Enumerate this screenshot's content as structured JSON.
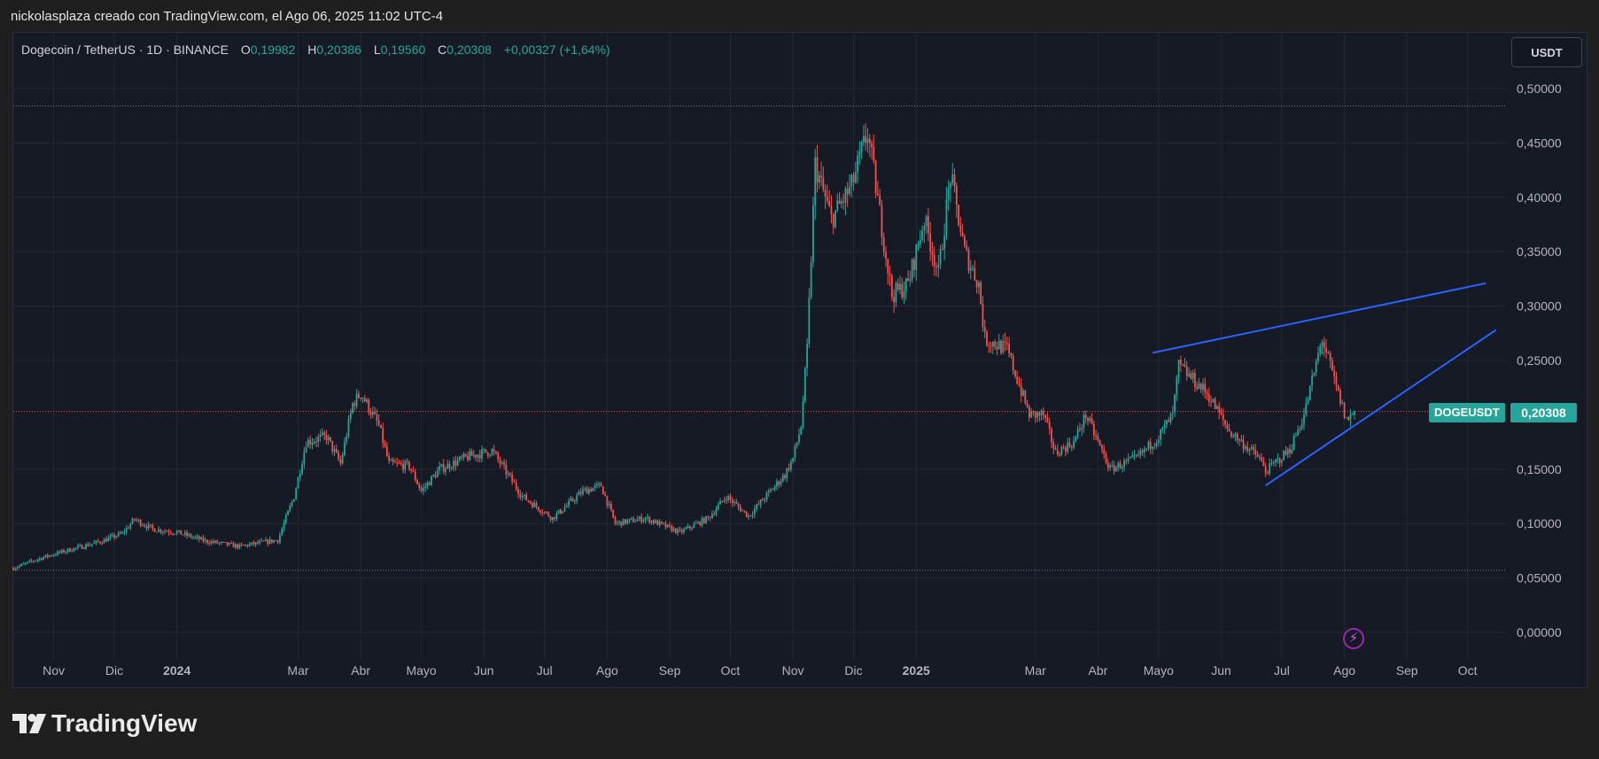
{
  "caption": "nickolasplaza creado con TradingView.com, el Ago 06, 2025 11:02 UTC-4",
  "legend": {
    "symbol": "Dogecoin / TetherUS · 1D · BINANCE",
    "o_label": "O",
    "o_value": "0,19982",
    "h_label": "H",
    "h_value": "0,20386",
    "l_label": "L",
    "l_value": "0,19560",
    "c_label": "C",
    "c_value": "0,20308",
    "change": "+0,00327 (+1,64%)"
  },
  "currency_button": "USDT",
  "symbol_tag": "DOGEUSDT",
  "last_price_label": "0,20308",
  "brand": "TradingView",
  "colors": {
    "up": "#26a69a",
    "down": "#ef5350",
    "trendline": "#2962ff",
    "background": "#161a25",
    "grid": "#242833"
  },
  "icons": [
    "tradingview-logo-icon",
    "flash-icon"
  ],
  "chart_data": {
    "type": "candlestick",
    "interval": "1D",
    "x_range": [
      "2023-10-12",
      "2025-10-20"
    ],
    "ylim": [
      -0.02,
      0.52
    ],
    "y_ticks": [
      {
        "value": 0.5,
        "label": "0,50000"
      },
      {
        "value": 0.45,
        "label": "0,45000"
      },
      {
        "value": 0.4,
        "label": "0,40000"
      },
      {
        "value": 0.35,
        "label": "0,35000"
      },
      {
        "value": 0.3,
        "label": "0,30000"
      },
      {
        "value": 0.25,
        "label": "0,25000"
      },
      {
        "value": 0.15,
        "label": "0,15000"
      },
      {
        "value": 0.1,
        "label": "0,10000"
      },
      {
        "value": 0.05,
        "label": "0,05000"
      },
      {
        "value": 0.0,
        "label": "0,00000"
      }
    ],
    "x_ticks": [
      {
        "date": "2023-11-01",
        "label": "Nov",
        "bold": false
      },
      {
        "date": "2023-12-01",
        "label": "Dic",
        "bold": false
      },
      {
        "date": "2024-01-01",
        "label": "2024",
        "bold": true
      },
      {
        "date": "2024-03-01",
        "label": "Mar",
        "bold": false
      },
      {
        "date": "2024-04-01",
        "label": "Abr",
        "bold": false
      },
      {
        "date": "2024-05-01",
        "label": "Mayo",
        "bold": false
      },
      {
        "date": "2024-06-01",
        "label": "Jun",
        "bold": false
      },
      {
        "date": "2024-07-01",
        "label": "Jul",
        "bold": false
      },
      {
        "date": "2024-08-01",
        "label": "Ago",
        "bold": false
      },
      {
        "date": "2024-09-01",
        "label": "Sep",
        "bold": false
      },
      {
        "date": "2024-10-01",
        "label": "Oct",
        "bold": false
      },
      {
        "date": "2024-11-01",
        "label": "Nov",
        "bold": false
      },
      {
        "date": "2024-12-01",
        "label": "Dic",
        "bold": false
      },
      {
        "date": "2025-01-01",
        "label": "2025",
        "bold": true
      },
      {
        "date": "2025-03-01",
        "label": "Mar",
        "bold": false
      },
      {
        "date": "2025-04-01",
        "label": "Abr",
        "bold": false
      },
      {
        "date": "2025-05-01",
        "label": "Mayo",
        "bold": false
      },
      {
        "date": "2025-06-01",
        "label": "Jun",
        "bold": false
      },
      {
        "date": "2025-07-01",
        "label": "Jul",
        "bold": false
      },
      {
        "date": "2025-08-01",
        "label": "Ago",
        "bold": false
      },
      {
        "date": "2025-09-01",
        "label": "Sep",
        "bold": false
      },
      {
        "date": "2025-10-01",
        "label": "Oct",
        "bold": false
      }
    ],
    "close_path": [
      {
        "date": "2023-10-12",
        "close": 0.059
      },
      {
        "date": "2023-10-25",
        "close": 0.068
      },
      {
        "date": "2023-11-05",
        "close": 0.074
      },
      {
        "date": "2023-11-15",
        "close": 0.079
      },
      {
        "date": "2023-11-25",
        "close": 0.084
      },
      {
        "date": "2023-12-05",
        "close": 0.091
      },
      {
        "date": "2023-12-11",
        "close": 0.104
      },
      {
        "date": "2023-12-20",
        "close": 0.095
      },
      {
        "date": "2024-01-01",
        "close": 0.092
      },
      {
        "date": "2024-01-15",
        "close": 0.084
      },
      {
        "date": "2024-02-01",
        "close": 0.079
      },
      {
        "date": "2024-02-20",
        "close": 0.085
      },
      {
        "date": "2024-02-28",
        "close": 0.125
      },
      {
        "date": "2024-03-05",
        "close": 0.175
      },
      {
        "date": "2024-03-15",
        "close": 0.18
      },
      {
        "date": "2024-03-22",
        "close": 0.155
      },
      {
        "date": "2024-03-28",
        "close": 0.21
      },
      {
        "date": "2024-04-01",
        "close": 0.22
      },
      {
        "date": "2024-04-10",
        "close": 0.19
      },
      {
        "date": "2024-04-15",
        "close": 0.155
      },
      {
        "date": "2024-04-25",
        "close": 0.153
      },
      {
        "date": "2024-05-01",
        "close": 0.13
      },
      {
        "date": "2024-05-10",
        "close": 0.15
      },
      {
        "date": "2024-05-25",
        "close": 0.162
      },
      {
        "date": "2024-06-05",
        "close": 0.167
      },
      {
        "date": "2024-06-20",
        "close": 0.125
      },
      {
        "date": "2024-07-05",
        "close": 0.105
      },
      {
        "date": "2024-07-20",
        "close": 0.13
      },
      {
        "date": "2024-07-29",
        "close": 0.135
      },
      {
        "date": "2024-08-05",
        "close": 0.1
      },
      {
        "date": "2024-08-20",
        "close": 0.105
      },
      {
        "date": "2024-09-06",
        "close": 0.092
      },
      {
        "date": "2024-09-20",
        "close": 0.105
      },
      {
        "date": "2024-09-29",
        "close": 0.125
      },
      {
        "date": "2024-10-10",
        "close": 0.107
      },
      {
        "date": "2024-10-28",
        "close": 0.145
      },
      {
        "date": "2024-11-01",
        "close": 0.16
      },
      {
        "date": "2024-11-05",
        "close": 0.19
      },
      {
        "date": "2024-11-08",
        "close": 0.26
      },
      {
        "date": "2024-11-12",
        "close": 0.43
      },
      {
        "date": "2024-11-20",
        "close": 0.38
      },
      {
        "date": "2024-11-30",
        "close": 0.41
      },
      {
        "date": "2024-12-08",
        "close": 0.46
      },
      {
        "date": "2024-12-12",
        "close": 0.41
      },
      {
        "date": "2024-12-20",
        "close": 0.31
      },
      {
        "date": "2024-12-28",
        "close": 0.32
      },
      {
        "date": "2025-01-05",
        "close": 0.38
      },
      {
        "date": "2025-01-12",
        "close": 0.33
      },
      {
        "date": "2025-01-18",
        "close": 0.42
      },
      {
        "date": "2025-01-25",
        "close": 0.35
      },
      {
        "date": "2025-02-01",
        "close": 0.32
      },
      {
        "date": "2025-02-04",
        "close": 0.27
      },
      {
        "date": "2025-02-15",
        "close": 0.26
      },
      {
        "date": "2025-02-26",
        "close": 0.2
      },
      {
        "date": "2025-03-05",
        "close": 0.2
      },
      {
        "date": "2025-03-11",
        "close": 0.165
      },
      {
        "date": "2025-03-20",
        "close": 0.175
      },
      {
        "date": "2025-03-26",
        "close": 0.2
      },
      {
        "date": "2025-04-07",
        "close": 0.15
      },
      {
        "date": "2025-04-20",
        "close": 0.16
      },
      {
        "date": "2025-05-01",
        "close": 0.18
      },
      {
        "date": "2025-05-08",
        "close": 0.2
      },
      {
        "date": "2025-05-11",
        "close": 0.245
      },
      {
        "date": "2025-05-25",
        "close": 0.22
      },
      {
        "date": "2025-06-05",
        "close": 0.185
      },
      {
        "date": "2025-06-20",
        "close": 0.16
      },
      {
        "date": "2025-06-23",
        "close": 0.148
      },
      {
        "date": "2025-07-05",
        "close": 0.168
      },
      {
        "date": "2025-07-12",
        "close": 0.2
      },
      {
        "date": "2025-07-21",
        "close": 0.27
      },
      {
        "date": "2025-07-28",
        "close": 0.225
      },
      {
        "date": "2025-08-02",
        "close": 0.195
      },
      {
        "date": "2025-08-06",
        "close": 0.203
      }
    ],
    "reference_lines": [
      {
        "value": 0.484,
        "color": "#787b86"
      },
      {
        "value": 0.2031,
        "color": "#ef5350"
      },
      {
        "value": 0.057,
        "color": "#787b86"
      }
    ],
    "trendlines": [
      {
        "from": {
          "date": "2025-04-28",
          "value": 0.257
        },
        "to": {
          "date": "2025-10-10",
          "value": 0.321
        }
      },
      {
        "from": {
          "date": "2025-06-23",
          "value": 0.135
        },
        "to": {
          "date": "2025-10-15",
          "value": 0.278
        }
      }
    ]
  }
}
